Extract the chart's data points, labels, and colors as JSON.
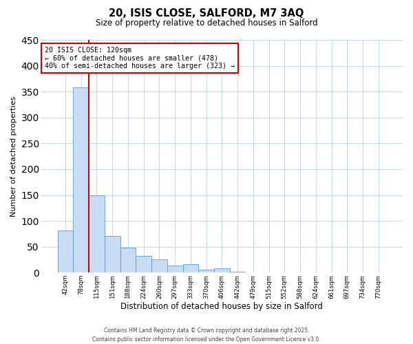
{
  "title": "20, ISIS CLOSE, SALFORD, M7 3AQ",
  "subtitle": "Size of property relative to detached houses in Salford",
  "xlabel": "Distribution of detached houses by size in Salford",
  "ylabel": "Number of detached properties",
  "categories": [
    "42sqm",
    "78sqm",
    "115sqm",
    "151sqm",
    "188sqm",
    "224sqm",
    "260sqm",
    "297sqm",
    "333sqm",
    "370sqm",
    "406sqm",
    "442sqm",
    "479sqm",
    "515sqm",
    "552sqm",
    "588sqm",
    "624sqm",
    "661sqm",
    "697sqm",
    "734sqm",
    "770sqm"
  ],
  "values": [
    82,
    358,
    150,
    71,
    48,
    32,
    25,
    14,
    17,
    6,
    8,
    2,
    0,
    0,
    0,
    0,
    0,
    0,
    0,
    0,
    1
  ],
  "bar_color": "#c8ddf2",
  "bar_edge_color": "#5b9bd5",
  "vline_color": "#cc0000",
  "annotation_title": "20 ISIS CLOSE: 120sqm",
  "annotation_line1": "← 60% of detached houses are smaller (478)",
  "annotation_line2": "40% of semi-detached houses are larger (323) →",
  "annotation_box_color": "#ffffff",
  "annotation_box_edge": "#cc0000",
  "ylim": [
    0,
    450
  ],
  "yticks": [
    0,
    50,
    100,
    150,
    200,
    250,
    300,
    350,
    400,
    450
  ],
  "footer_line1": "Contains HM Land Registry data © Crown copyright and database right 2025.",
  "footer_line2": "Contains public sector information licensed under the Open Government Licence v3.0.",
  "background_color": "#ffffff",
  "grid_color": "#c8d8ec"
}
